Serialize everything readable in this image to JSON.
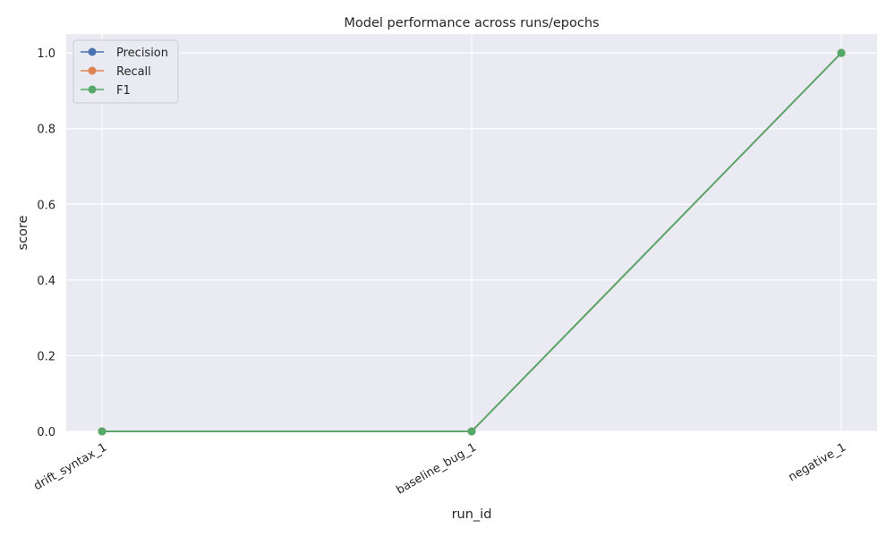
{
  "chart_data": {
    "type": "line",
    "title": "Model performance across runs/epochs",
    "xlabel": "run_id",
    "ylabel": "score",
    "categories": [
      "drift_syntax_1",
      "baseline_bug_1",
      "negative_1"
    ],
    "ylim": [
      0,
      1.05
    ],
    "yticks": [
      "0.0",
      "0.2",
      "0.4",
      "0.6",
      "0.8",
      "1.0"
    ],
    "grid": true,
    "legend_position": "top-left",
    "series": [
      {
        "name": "Precision",
        "values": [
          0,
          0,
          1
        ],
        "color": "#4c72b0"
      },
      {
        "name": "Recall",
        "values": [
          0,
          0,
          1
        ],
        "color": "#dd8452"
      },
      {
        "name": "F1",
        "values": [
          0,
          0,
          1
        ],
        "color": "#55a868"
      }
    ]
  },
  "colors": {
    "plot_background": "#eaeaf2",
    "grid": "#ffffff"
  }
}
